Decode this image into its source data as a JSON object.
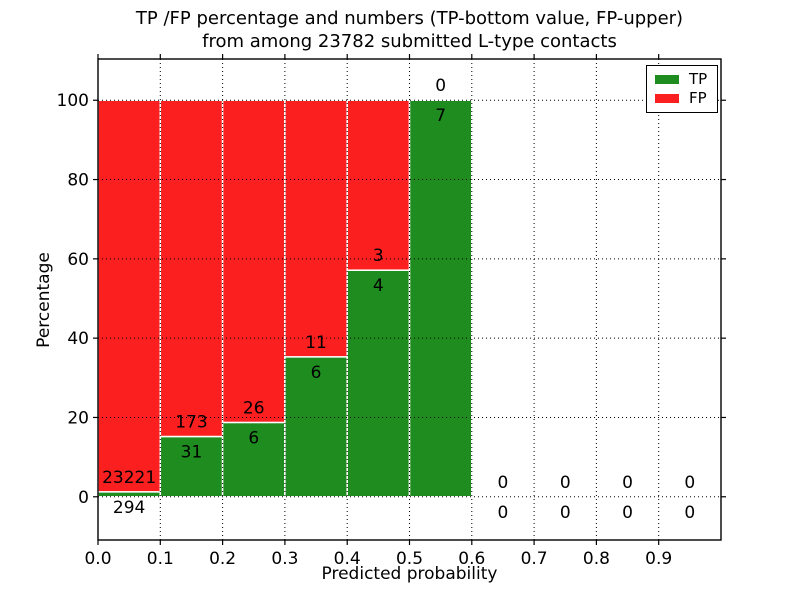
{
  "figure": {
    "title_line1": "TP /FP percentage and numbers (TP-bottom value, FP-upper)",
    "title_line2": "from among 23782 submitted L-type contacts"
  },
  "chart_data": {
    "type": "bar",
    "stacked": true,
    "title": "TP /FP percentage and numbers (TP-bottom value, FP-upper)\nfrom among 23782 submitted L-type contacts",
    "xlabel": "Predicted probability",
    "ylabel": "Percentage",
    "total_submitted_contacts": 23782,
    "xlim": [
      0.0,
      1.0
    ],
    "ylim": [
      -10.9,
      110.4
    ],
    "xticks": [
      "0.0",
      "0.1",
      "0.2",
      "0.3",
      "0.4",
      "0.5",
      "0.6",
      "0.7",
      "0.8",
      "0.9"
    ],
    "yticks": [
      0,
      20,
      40,
      60,
      80,
      100
    ],
    "grid": true,
    "grid_style": "dotted",
    "legend_position": "upper right",
    "colors": {
      "tp": "#1f8c1f",
      "fp": "#fb1f1f",
      "bar_edge": "#ffffff",
      "grid": "#000000"
    },
    "legend": [
      {
        "label": "TP",
        "color": "#1f8c1f"
      },
      {
        "label": "FP",
        "color": "#fb1f1f"
      }
    ],
    "bins": [
      {
        "x0": 0.0,
        "x1": 0.1,
        "tp": 294,
        "fp": 23221,
        "tp_pct": 1.25,
        "fp_pct": 98.75
      },
      {
        "x0": 0.1,
        "x1": 0.2,
        "tp": 31,
        "fp": 173,
        "tp_pct": 15.2,
        "fp_pct": 84.8
      },
      {
        "x0": 0.2,
        "x1": 0.3,
        "tp": 6,
        "fp": 26,
        "tp_pct": 18.75,
        "fp_pct": 81.25
      },
      {
        "x0": 0.3,
        "x1": 0.4,
        "tp": 6,
        "fp": 11,
        "tp_pct": 35.29,
        "fp_pct": 64.71
      },
      {
        "x0": 0.4,
        "x1": 0.5,
        "tp": 4,
        "fp": 3,
        "tp_pct": 57.14,
        "fp_pct": 42.86
      },
      {
        "x0": 0.5,
        "x1": 0.6,
        "tp": 7,
        "fp": 0,
        "tp_pct": 100,
        "fp_pct": 0
      },
      {
        "x0": 0.6,
        "x1": 0.7,
        "tp": 0,
        "fp": 0,
        "tp_pct": 0,
        "fp_pct": 0
      },
      {
        "x0": 0.7,
        "x1": 0.8,
        "tp": 0,
        "fp": 0,
        "tp_pct": 0,
        "fp_pct": 0
      },
      {
        "x0": 0.8,
        "x1": 0.9,
        "tp": 0,
        "fp": 0,
        "tp_pct": 0,
        "fp_pct": 0
      },
      {
        "x0": 0.9,
        "x1": 1.0,
        "tp": 0,
        "fp": 0,
        "tp_pct": 0,
        "fp_pct": 0
      }
    ],
    "series": [
      {
        "name": "TP",
        "counts": [
          294,
          31,
          6,
          6,
          4,
          7,
          0,
          0,
          0,
          0
        ]
      },
      {
        "name": "FP",
        "counts": [
          23221,
          173,
          26,
          11,
          3,
          0,
          0,
          0,
          0,
          0
        ]
      }
    ]
  }
}
